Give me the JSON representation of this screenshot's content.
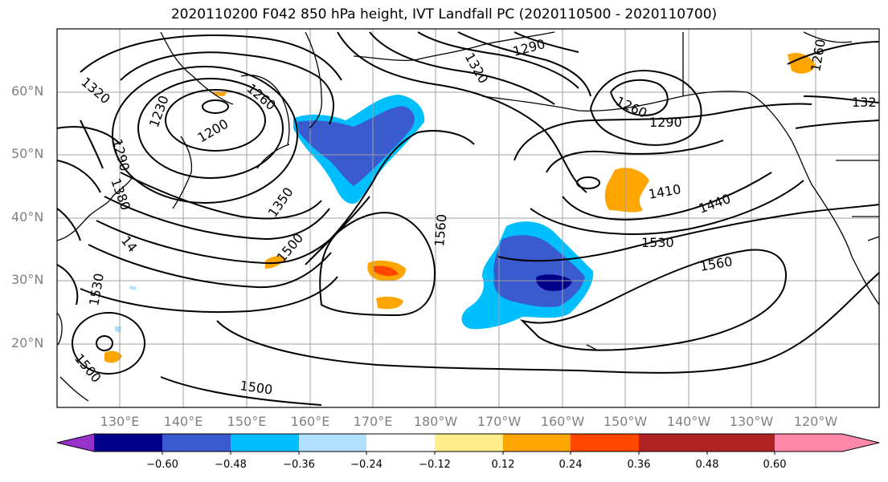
{
  "title": "2020110200 F042 850 hPa height, IVT Landfall PC (2020110500 - 2020110700)",
  "lat_labels": [
    "60°N",
    "50°N",
    "40°N",
    "30°N",
    "20°N"
  ],
  "lon_labels": [
    "130°E",
    "140°E",
    "150°E",
    "160°E",
    "170°E",
    "180°W",
    "170°W",
    "160°W",
    "150°W",
    "140°W",
    "130°W",
    "120°W"
  ],
  "colorbar": {
    "ticks": [
      "−0.60",
      "−0.48",
      "−0.36",
      "−0.24",
      "−0.12",
      "0.12",
      "0.24",
      "0.36",
      "0.48",
      "0.60"
    ],
    "colors": [
      "#9932cc",
      "#00008b",
      "#3a5bcd",
      "#00bfff",
      "#b0e0ff",
      "#ffffff",
      "#ffec8b",
      "#ffa500",
      "#ff4500",
      "#b22222",
      "#ff88aa"
    ]
  },
  "contour_labels": [
    "1320",
    "1230",
    "1260",
    "1200",
    "1290",
    "1380",
    "1350",
    "1500",
    "1560",
    "1260",
    "1290",
    "1410",
    "1440",
    "1530",
    "1560",
    "1530",
    "1500",
    "1500",
    "14",
    "1290",
    "1260",
    "132",
    "1320"
  ]
}
